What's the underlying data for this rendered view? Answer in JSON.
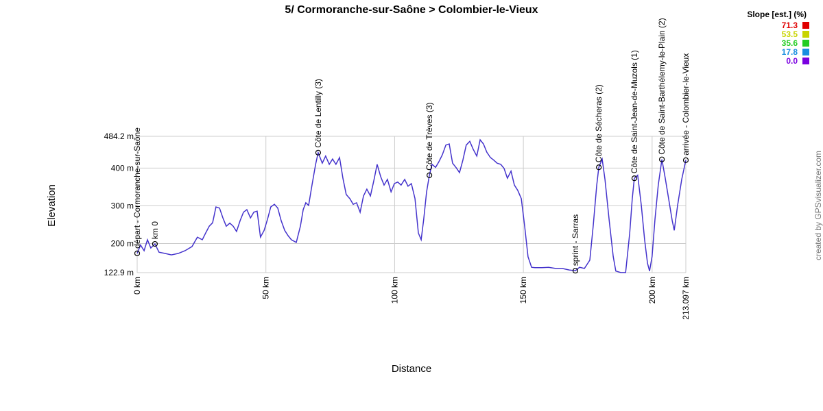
{
  "chart_data": {
    "type": "line",
    "title": "5/ Cormoranche-sur-Saône > Colombier-le-Vieux",
    "x_label": "Distance",
    "y_label": "Elevation",
    "credit": "created by GPSvisualizer.com",
    "color": "#4433cc",
    "x": [
      0,
      1.3,
      2.7,
      4.0,
      5.3,
      6.9,
      8.5,
      10.7,
      13.3,
      16.0,
      18.6,
      21.3,
      23.4,
      25.3,
      26.6,
      28.0,
      29.3,
      30.6,
      32.0,
      33.3,
      34.6,
      36.0,
      37.3,
      38.6,
      40.0,
      41.3,
      42.6,
      44.0,
      45.3,
      46.6,
      47.9,
      49.3,
      50.6,
      51.9,
      53.3,
      54.6,
      55.9,
      57.3,
      58.6,
      59.9,
      61.8,
      63.4,
      64.5,
      65.5,
      66.6,
      67.9,
      69.3,
      70.3,
      71.9,
      73.2,
      74.6,
      75.9,
      77.2,
      78.6,
      79.9,
      81.2,
      82.6,
      83.9,
      85.2,
      86.6,
      87.9,
      89.2,
      90.6,
      91.9,
      93.2,
      94.6,
      95.9,
      97.2,
      98.6,
      99.9,
      101.2,
      102.5,
      103.9,
      105.2,
      106.5,
      107.9,
      109.2,
      110.3,
      111.3,
      112.4,
      113.5,
      114.5,
      115.9,
      117.2,
      118.5,
      119.9,
      121.2,
      122.5,
      123.9,
      125.2,
      126.5,
      127.8,
      129.2,
      130.5,
      131.9,
      133.2,
      134.5,
      135.8,
      137.2,
      138.5,
      139.8,
      141.2,
      142.5,
      143.8,
      145.2,
      146.5,
      147.8,
      149.2,
      150.5,
      151.8,
      153.2,
      154.5,
      157.2,
      159.8,
      162.5,
      165.1,
      167.8,
      170.2,
      171.8,
      173.7,
      175.8,
      177.1,
      178.5,
      179.3,
      180.6,
      181.7,
      183.3,
      184.9,
      185.9,
      187.8,
      189.7,
      191.3,
      192.3,
      193.1,
      194.4,
      195.8,
      197.1,
      198.2,
      199.0,
      200.0,
      201.1,
      202.4,
      203.8,
      205.1,
      206.4,
      207.8,
      208.6,
      209.9,
      211.5,
      213.097
    ],
    "values": [
      174,
      196,
      181,
      210,
      188,
      199,
      177,
      174,
      170,
      174,
      181,
      192,
      217,
      210,
      228,
      246,
      255,
      297,
      294,
      268,
      246,
      254,
      246,
      232,
      261,
      283,
      290,
      268,
      283,
      286,
      217,
      235,
      264,
      297,
      304,
      294,
      261,
      235,
      221,
      210,
      203,
      246,
      290,
      308,
      301,
      355,
      410,
      441,
      413,
      432,
      410,
      424,
      410,
      428,
      373,
      330,
      319,
      304,
      308,
      283,
      326,
      344,
      326,
      366,
      410,
      377,
      355,
      370,
      337,
      359,
      363,
      355,
      370,
      352,
      359,
      319,
      228,
      210,
      264,
      337,
      381,
      410,
      402,
      417,
      435,
      461,
      464,
      413,
      401,
      388,
      421,
      461,
      471,
      450,
      432,
      475,
      464,
      442,
      428,
      421,
      413,
      410,
      399,
      373,
      392,
      355,
      341,
      319,
      246,
      165,
      137,
      136,
      136,
      137,
      134,
      134,
      130,
      128,
      137,
      134,
      156,
      246,
      355,
      402,
      424,
      370,
      264,
      166,
      127,
      123,
      123,
      228,
      319,
      373,
      381,
      301,
      210,
      148,
      127,
      166,
      264,
      355,
      423,
      373,
      319,
      261,
      235,
      301,
      370,
      421
    ],
    "xlim": [
      0,
      213.097
    ],
    "xticks": [
      {
        "value": 0,
        "label": "0 km"
      },
      {
        "value": 50,
        "label": "50 km"
      },
      {
        "value": 100,
        "label": "100 km"
      },
      {
        "value": 150,
        "label": "150 km"
      },
      {
        "value": 200,
        "label": "200 km"
      },
      {
        "value": 213.097,
        "label": "213.097 km"
      }
    ],
    "ylim": [
      122.9,
      484.2
    ],
    "yticks": [
      {
        "value": 122.9,
        "label": "122.9 m"
      },
      {
        "value": 200,
        "label": "200 m"
      },
      {
        "value": 300,
        "label": "300 m"
      },
      {
        "value": 400,
        "label": "400 m"
      },
      {
        "value": 484.2,
        "label": "484.2 m"
      }
    ],
    "grid": true,
    "waypoints": [
      {
        "label": "départ - Cormoranche-sur-Saône",
        "x": 0,
        "y": 174
      },
      {
        "label": "km 0",
        "x": 6.9,
        "y": 199
      },
      {
        "label": "Côte de Lentilly (3)",
        "x": 70.3,
        "y": 441
      },
      {
        "label": "Côte de Trèves (3)",
        "x": 113.5,
        "y": 381
      },
      {
        "label": "sprint - Sarras",
        "x": 170.2,
        "y": 128
      },
      {
        "label": "Côte de Sécheras (2)",
        "x": 179.3,
        "y": 402
      },
      {
        "label": "Côte de Saint-Jean-de-Muzols (1)",
        "x": 193.1,
        "y": 373
      },
      {
        "label": "Côte de Saint-Barthélemy-le-Plain (2)",
        "x": 203.8,
        "y": 423
      },
      {
        "label": "arrivée - Colombier-le-Vieux",
        "x": 213.097,
        "y": 421
      }
    ],
    "legend": {
      "title": "Slope [est.] (%)",
      "items": [
        {
          "value": 71.3,
          "color": "#e00000"
        },
        {
          "value": 53.5,
          "color": "#c8d400"
        },
        {
          "value": 35.6,
          "color": "#22cc22"
        },
        {
          "value": 17.8,
          "color": "#1a8fe0"
        },
        {
          "value": {
            "value": 0,
            "label": "0.0"
          },
          "color": "#7a00e0"
        }
      ]
    }
  }
}
